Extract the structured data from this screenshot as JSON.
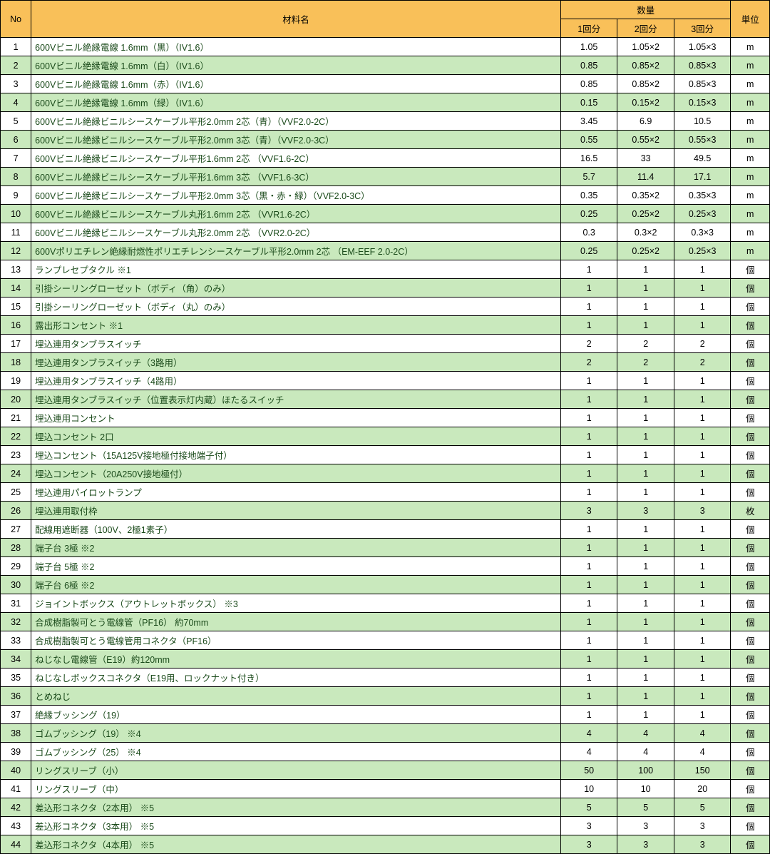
{
  "headers": {
    "no": "No",
    "name": "材料名",
    "qty": "数量",
    "q1": "1回分",
    "q2": "2回分",
    "q3": "3回分",
    "unit": "単位"
  },
  "colors": {
    "header_bg": "#f9c059",
    "even_row_bg": "#c9e9bd",
    "odd_row_bg": "#ffffff",
    "border": "#000000",
    "name_text": "#1a4a1a"
  },
  "rows": [
    {
      "no": 1,
      "name": "600Vビニル絶縁電線 1.6mm（黒）（IV1.6）",
      "q1": "1.05",
      "q2": "1.05×2",
      "q3": "1.05×3",
      "unit": "m"
    },
    {
      "no": 2,
      "name": "600Vビニル絶縁電線 1.6mm（白）（IV1.6）",
      "q1": "0.85",
      "q2": "0.85×2",
      "q3": "0.85×3",
      "unit": "m"
    },
    {
      "no": 3,
      "name": "600Vビニル絶縁電線 1.6mm（赤）（IV1.6）",
      "q1": "0.85",
      "q2": "0.85×2",
      "q3": "0.85×3",
      "unit": "m"
    },
    {
      "no": 4,
      "name": "600Vビニル絶縁電線 1.6mm（緑）（IV1.6）",
      "q1": "0.15",
      "q2": "0.15×2",
      "q3": "0.15×3",
      "unit": "m"
    },
    {
      "no": 5,
      "name": "600Vビニル絶縁ビニルシースケーブル平形2.0mm 2芯（青）（VVF2.0-2C）",
      "q1": "3.45",
      "q2": "6.9",
      "q3": "10.5",
      "unit": "m"
    },
    {
      "no": 6,
      "name": "600Vビニル絶縁ビニルシースケーブル平形2.0mm 3芯（青）（VVF2.0-3C）",
      "q1": "0.55",
      "q2": "0.55×2",
      "q3": "0.55×3",
      "unit": "m"
    },
    {
      "no": 7,
      "name": "600Vビニル絶縁ビニルシースケーブル平形1.6mm 2芯 （VVF1.6-2C）",
      "q1": "16.5",
      "q2": "33",
      "q3": "49.5",
      "unit": "m"
    },
    {
      "no": 8,
      "name": "600Vビニル絶縁ビニルシースケーブル平形1.6mm 3芯 （VVF1.6-3C）",
      "q1": "5.7",
      "q2": "11.4",
      "q3": "17.1",
      "unit": "m"
    },
    {
      "no": 9,
      "name": "600Vビニル絶縁ビニルシースケーブル平形2.0mm 3芯（黒・赤・緑）（VVF2.0-3C）",
      "q1": "0.35",
      "q2": "0.35×2",
      "q3": "0.35×3",
      "unit": "m"
    },
    {
      "no": 10,
      "name": "600Vビニル絶縁ビニルシースケーブル丸形1.6mm 2芯 （VVR1.6-2C）",
      "q1": "0.25",
      "q2": "0.25×2",
      "q3": "0.25×3",
      "unit": "m"
    },
    {
      "no": 11,
      "name": "600Vビニル絶縁ビニルシースケーブル丸形2.0mm 2芯 （VVR2.0-2C）",
      "q1": "0.3",
      "q2": "0.3×2",
      "q3": "0.3×3",
      "unit": "m"
    },
    {
      "no": 12,
      "name": "600Vポリエチレン絶縁耐燃性ポリエチレンシースケーブル平形2.0mm 2芯 （EM-EEF 2.0-2C）",
      "q1": "0.25",
      "q2": "0.25×2",
      "q3": "0.25×3",
      "unit": "m"
    },
    {
      "no": 13,
      "name": "ランプレセプタクル ※1",
      "q1": "1",
      "q2": "1",
      "q3": "1",
      "unit": "個"
    },
    {
      "no": 14,
      "name": "引掛シーリングローゼット（ボディ（角）のみ）",
      "q1": "1",
      "q2": "1",
      "q3": "1",
      "unit": "個"
    },
    {
      "no": 15,
      "name": "引掛シーリングローゼット（ボディ（丸）のみ）",
      "q1": "1",
      "q2": "1",
      "q3": "1",
      "unit": "個"
    },
    {
      "no": 16,
      "name": "露出形コンセント ※1",
      "q1": "1",
      "q2": "1",
      "q3": "1",
      "unit": "個"
    },
    {
      "no": 17,
      "name": "埋込連用タンブラスイッチ",
      "q1": "2",
      "q2": "2",
      "q3": "2",
      "unit": "個"
    },
    {
      "no": 18,
      "name": "埋込連用タンブラスイッチ（3路用）",
      "q1": "2",
      "q2": "2",
      "q3": "2",
      "unit": "個"
    },
    {
      "no": 19,
      "name": "埋込連用タンブラスイッチ（4路用）",
      "q1": "1",
      "q2": "1",
      "q3": "1",
      "unit": "個"
    },
    {
      "no": 20,
      "name": "埋込連用タンブラスイッチ（位置表示灯内蔵）ほたるスイッチ",
      "q1": "1",
      "q2": "1",
      "q3": "1",
      "unit": "個"
    },
    {
      "no": 21,
      "name": "埋込連用コンセント",
      "q1": "1",
      "q2": "1",
      "q3": "1",
      "unit": "個"
    },
    {
      "no": 22,
      "name": "埋込コンセント 2口",
      "q1": "1",
      "q2": "1",
      "q3": "1",
      "unit": "個"
    },
    {
      "no": 23,
      "name": "埋込コンセント（15A125V接地極付接地端子付）",
      "q1": "1",
      "q2": "1",
      "q3": "1",
      "unit": "個"
    },
    {
      "no": 24,
      "name": "埋込コンセント（20A250V接地極付）",
      "q1": "1",
      "q2": "1",
      "q3": "1",
      "unit": "個"
    },
    {
      "no": 25,
      "name": "埋込連用パイロットランプ",
      "q1": "1",
      "q2": "1",
      "q3": "1",
      "unit": "個"
    },
    {
      "no": 26,
      "name": "埋込連用取付枠",
      "q1": "3",
      "q2": "3",
      "q3": "3",
      "unit": "枚"
    },
    {
      "no": 27,
      "name": "配線用遮断器（100V、2極1素子）",
      "q1": "1",
      "q2": "1",
      "q3": "1",
      "unit": "個"
    },
    {
      "no": 28,
      "name": "端子台 3極 ※2",
      "q1": "1",
      "q2": "1",
      "q3": "1",
      "unit": "個"
    },
    {
      "no": 29,
      "name": "端子台 5極 ※2",
      "q1": "1",
      "q2": "1",
      "q3": "1",
      "unit": "個"
    },
    {
      "no": 30,
      "name": "端子台 6極 ※2",
      "q1": "1",
      "q2": "1",
      "q3": "1",
      "unit": "個"
    },
    {
      "no": 31,
      "name": "ジョイントボックス（アウトレットボックス） ※3",
      "q1": "1",
      "q2": "1",
      "q3": "1",
      "unit": "個"
    },
    {
      "no": 32,
      "name": "合成樹脂製可とう電線管（PF16） 約70mm",
      "q1": "1",
      "q2": "1",
      "q3": "1",
      "unit": "個"
    },
    {
      "no": 33,
      "name": "合成樹脂製可とう電線管用コネクタ（PF16）",
      "q1": "1",
      "q2": "1",
      "q3": "1",
      "unit": "個"
    },
    {
      "no": 34,
      "name": "ねじなし電線管（E19）約120mm",
      "q1": "1",
      "q2": "1",
      "q3": "1",
      "unit": "個"
    },
    {
      "no": 35,
      "name": "ねじなしボックスコネクタ（E19用、ロックナット付き）",
      "q1": "1",
      "q2": "1",
      "q3": "1",
      "unit": "個"
    },
    {
      "no": 36,
      "name": "とめねじ",
      "q1": "1",
      "q2": "1",
      "q3": "1",
      "unit": "個"
    },
    {
      "no": 37,
      "name": "絶縁ブッシング（19）",
      "q1": "1",
      "q2": "1",
      "q3": "1",
      "unit": "個"
    },
    {
      "no": 38,
      "name": "ゴムブッシング（19） ※4",
      "q1": "4",
      "q2": "4",
      "q3": "4",
      "unit": "個"
    },
    {
      "no": 39,
      "name": "ゴムブッシング（25） ※4",
      "q1": "4",
      "q2": "4",
      "q3": "4",
      "unit": "個"
    },
    {
      "no": 40,
      "name": "リングスリーブ（小）",
      "q1": "50",
      "q2": "100",
      "q3": "150",
      "unit": "個"
    },
    {
      "no": 41,
      "name": "リングスリーブ（中）",
      "q1": "10",
      "q2": "10",
      "q3": "20",
      "unit": "個"
    },
    {
      "no": 42,
      "name": "差込形コネクタ（2本用） ※5",
      "q1": "5",
      "q2": "5",
      "q3": "5",
      "unit": "個"
    },
    {
      "no": 43,
      "name": "差込形コネクタ（3本用） ※5",
      "q1": "3",
      "q2": "3",
      "q3": "3",
      "unit": "個"
    },
    {
      "no": 44,
      "name": "差込形コネクタ（4本用） ※5",
      "q1": "3",
      "q2": "3",
      "q3": "3",
      "unit": "個"
    }
  ]
}
